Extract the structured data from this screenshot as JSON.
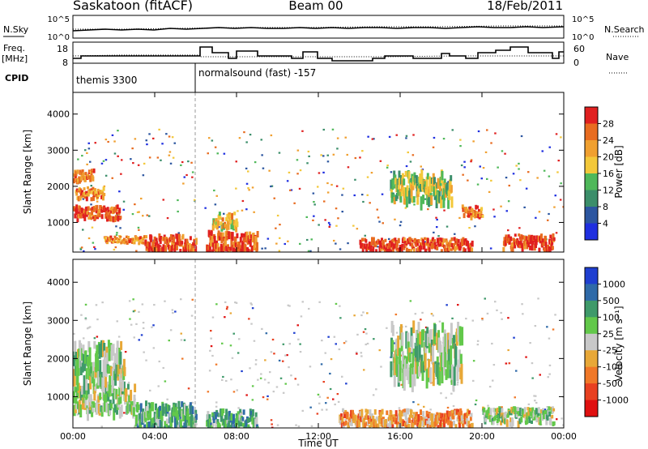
{
  "header": {
    "station": "Saskatoon (fitACF)",
    "beam": "Beam 00",
    "date": "18/Feb/2011"
  },
  "noise_panel": {
    "left_label": "N.Sky",
    "right_label": "N.Search",
    "yticks_left": [
      "10^5",
      "10^0"
    ],
    "yticks_right": [
      "10^5",
      "10^0"
    ]
  },
  "freq_panel": {
    "left_label_1": "Freq.",
    "left_label_2": "[MHz]",
    "right_label": "Nave",
    "yticks_left": [
      "18",
      "8"
    ],
    "yticks_right": [
      "60",
      "0"
    ]
  },
  "cpid": {
    "label": "CPID",
    "segments": [
      {
        "start_hour": 0,
        "name": "themis 3300"
      },
      {
        "start_hour": 6.05,
        "name": "normalsound (fast) -157"
      }
    ]
  },
  "colors": {
    "power_scale": [
      "#1f2fe0",
      "#2c56a0",
      "#3b8e6a",
      "#4fb85a",
      "#f3c83a",
      "#f0a030",
      "#e86c20",
      "#e02020"
    ],
    "velocity_scale": [
      "#1f3fd0",
      "#2f6aa8",
      "#3f9a6a",
      "#62c84a",
      "#c8c8c8",
      "#e8a838",
      "#f07828",
      "#e84020",
      "#e01010"
    ]
  },
  "chart_data": [
    {
      "type": "heatmap",
      "name": "power",
      "xlabel": "Time UT",
      "ylabel": "Slant Range [km]",
      "xlim": [
        0,
        24
      ],
      "ylim": [
        180,
        4600
      ],
      "xtick_labels": [
        "00:00",
        "04:00",
        "08:00",
        "12:00",
        "16:00",
        "20:00",
        "00:00"
      ],
      "ytick_values": [
        1000,
        2000,
        3000,
        4000
      ],
      "colorbar": {
        "label": "Power [dB]",
        "range": [
          0,
          32
        ],
        "tick_labels": [
          "4",
          "8",
          "12",
          "16",
          "20",
          "24",
          "28"
        ]
      },
      "features": [
        {
          "t0": 0.0,
          "t1": 2.3,
          "r0": 1150,
          "r1": 1500,
          "level": 7
        },
        {
          "t0": 0.0,
          "t1": 1.0,
          "r0": 2200,
          "r1": 2500,
          "level": 6
        },
        {
          "t0": 0.1,
          "t1": 1.5,
          "r0": 1700,
          "r1": 2000,
          "level": 6
        },
        {
          "t0": 1.5,
          "t1": 3.5,
          "r0": 450,
          "r1": 650,
          "level": 6
        },
        {
          "t0": 3.5,
          "t1": 6.0,
          "r0": 250,
          "r1": 700,
          "level": 7
        },
        {
          "t0": 6.5,
          "t1": 9.0,
          "r0": 250,
          "r1": 800,
          "level": 7
        },
        {
          "t0": 6.8,
          "t1": 8.0,
          "r0": 900,
          "r1": 1300,
          "level": 5
        },
        {
          "t0": 14.0,
          "t1": 19.5,
          "r0": 250,
          "r1": 600,
          "level": 7
        },
        {
          "t0": 15.5,
          "t1": 18.5,
          "r0": 1700,
          "r1": 2500,
          "level": 4
        },
        {
          "t0": 19.0,
          "t1": 20.0,
          "r0": 1200,
          "r1": 1500,
          "level": 6
        },
        {
          "t0": 21.0,
          "t1": 23.5,
          "r0": 300,
          "r1": 700,
          "level": 7
        }
      ]
    },
    {
      "type": "heatmap",
      "name": "velocity",
      "xlabel": "Time UT",
      "ylabel": "Slant Range [km]",
      "xlim": [
        0,
        24
      ],
      "ylim": [
        180,
        4600
      ],
      "xtick_labels": [
        "00:00",
        "04:00",
        "08:00",
        "12:00",
        "16:00",
        "20:00",
        "00:00"
      ],
      "ytick_values": [
        1000,
        2000,
        3000,
        4000
      ],
      "colorbar": {
        "label": "Velocity [m s⁻¹]",
        "tick_labels": [
          "1000",
          "500",
          "100",
          "25",
          "-25",
          "-100",
          "-500",
          "-1000"
        ]
      },
      "features": [
        {
          "t0": 0.0,
          "t1": 3.0,
          "r0": 700,
          "r1": 1400,
          "level": 4
        },
        {
          "t0": 0.0,
          "t1": 2.5,
          "r0": 1500,
          "r1": 2500,
          "level": 4
        },
        {
          "t0": 3.0,
          "t1": 6.0,
          "r0": 200,
          "r1": 900,
          "level": 3
        },
        {
          "t0": 6.5,
          "t1": 9.0,
          "r0": 200,
          "r1": 700,
          "level": 3
        },
        {
          "t0": 13.0,
          "t1": 19.5,
          "r0": 250,
          "r1": 700,
          "level": 6
        },
        {
          "t0": 15.5,
          "t1": 19.0,
          "r0": 1700,
          "r1": 3000,
          "level": 4
        },
        {
          "t0": 20.0,
          "t1": 23.5,
          "r0": 350,
          "r1": 750,
          "level": 4
        }
      ]
    }
  ]
}
